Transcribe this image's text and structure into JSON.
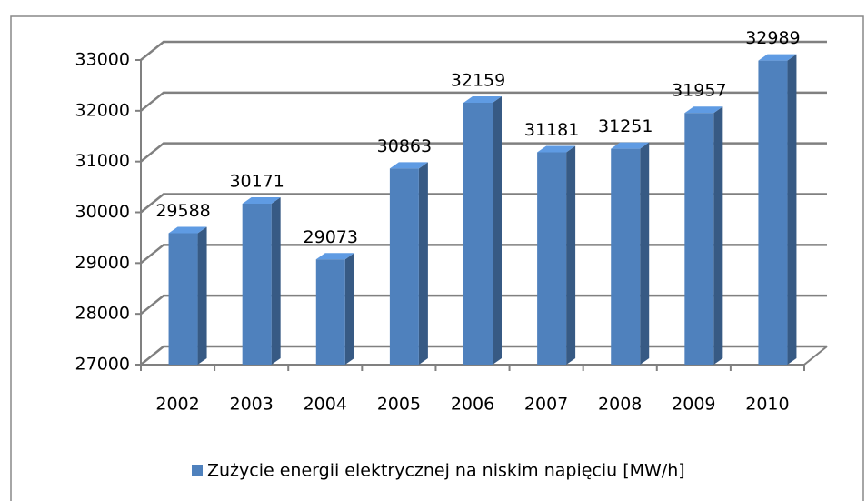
{
  "chart_data": {
    "type": "bar",
    "categories": [
      "2002",
      "2003",
      "2004",
      "2005",
      "2006",
      "2007",
      "2008",
      "2009",
      "2010"
    ],
    "series": [
      {
        "name": "Zużycie energii elektrycznej na niskim napięciu [MW/h]",
        "color": "#4f81bd",
        "values": [
          29588,
          30171,
          29073,
          30863,
          32159,
          31181,
          31251,
          31957,
          32989
        ]
      }
    ],
    "ylim": [
      27000,
      33000
    ],
    "yticks": [
      27000,
      28000,
      29000,
      30000,
      31000,
      32000,
      33000
    ],
    "grid": true,
    "legend": "bottom"
  }
}
